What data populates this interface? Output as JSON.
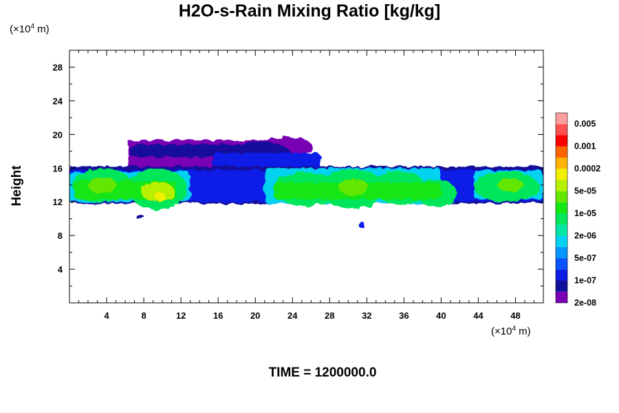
{
  "title": "H2O-s-Rain Mixing Ratio [kg/kg]",
  "time_label": "TIME = 1200000.0",
  "y_unit": {
    "prefix": "(×10",
    "exp": "4",
    "suffix": " m)"
  },
  "x_unit": {
    "prefix": "(×10",
    "exp": "4",
    "suffix": " m)"
  },
  "colors": {
    "levels": [
      "#7a00b4",
      "#12109a",
      "#0a1ee6",
      "#0a55ff",
      "#0596ff",
      "#00d2f0",
      "#00e6a6",
      "#00e65a",
      "#14e614",
      "#64e600",
      "#b4f000",
      "#f0f000",
      "#ffb400",
      "#ff6400",
      "#ff0000",
      "#ff5050",
      "#ff9e9e"
    ]
  },
  "chart_data": {
    "type": "heatmap",
    "title": "H2O-s-Rain Mixing Ratio [kg/kg]",
    "ylabel": "Height",
    "xlim": [
      0,
      51
    ],
    "ylim": [
      0,
      30
    ],
    "x_ticks": [
      4,
      8,
      12,
      16,
      20,
      24,
      28,
      32,
      36,
      40,
      44,
      48
    ],
    "y_ticks": [
      4,
      8,
      12,
      16,
      20,
      24,
      28
    ],
    "colorbar_labels": [
      "0.005",
      "0.001",
      "0.0002",
      "5e-05",
      "1e-05",
      "2e-06",
      "5e-07",
      "1e-07",
      "2e-08"
    ],
    "colorbar_levels": 17,
    "field_regions": [
      {
        "x": [
          0,
          51
        ],
        "y": [
          11.5,
          16.5
        ],
        "level": "low",
        "description": "main cloud layer"
      },
      {
        "x": [
          6,
          25
        ],
        "y": [
          15,
          19.7
        ],
        "level": "low",
        "description": "upper anvil"
      },
      {
        "x": [
          0.5,
          12
        ],
        "y": [
          11,
          16.3
        ],
        "level": "high"
      },
      {
        "x": [
          22,
          40
        ],
        "y": [
          11,
          16.5
        ],
        "level": "high"
      },
      {
        "x": [
          44,
          51
        ],
        "y": [
          12,
          16
        ],
        "level": "high"
      },
      {
        "x": [
          7.7,
          7.7
        ],
        "y": [
          10,
          10
        ],
        "level": "low"
      },
      {
        "x": [
          31.4,
          31.4
        ],
        "y": [
          9.3,
          9.3
        ],
        "level": "low"
      }
    ]
  }
}
